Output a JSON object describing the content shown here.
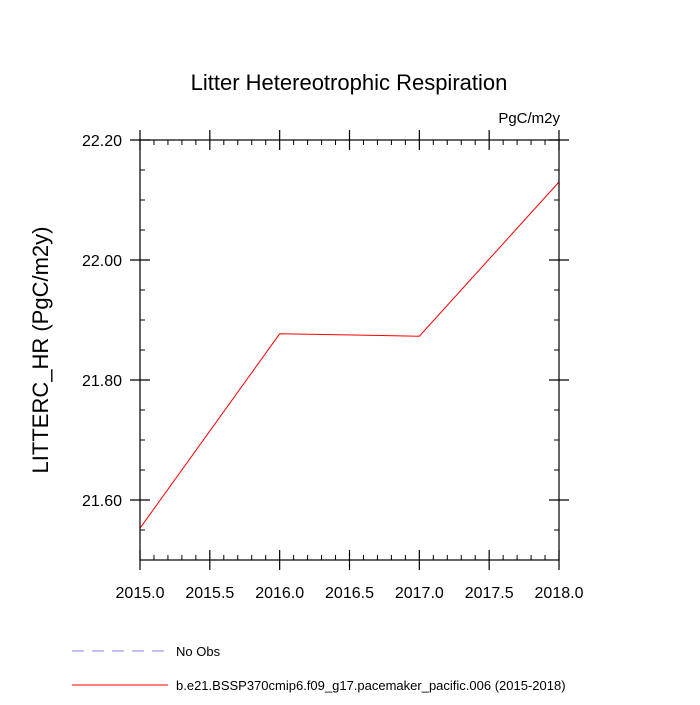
{
  "chart_data": {
    "type": "line",
    "title": "Litter Hetereotrophic Respiration",
    "units_label": "PgC/m2y",
    "xlabel": "",
    "ylabel": "LITTERC_HR  (PgC/m2y)",
    "xlim": [
      2015.0,
      2018.0
    ],
    "ylim": [
      21.5,
      22.2
    ],
    "x_ticks": [
      2015.0,
      2015.5,
      2016.0,
      2016.5,
      2017.0,
      2017.5,
      2018.0
    ],
    "x_tick_labels": [
      "2015.0",
      "2015.5",
      "2016.0",
      "2016.5",
      "2017.0",
      "2017.5",
      "2018.0"
    ],
    "y_ticks": [
      21.6,
      21.8,
      22.0,
      22.2
    ],
    "y_tick_labels": [
      "21.60",
      "21.80",
      "22.00",
      "22.20"
    ],
    "y_minor_step": 0.05,
    "x_minor_step": 0.1,
    "grid": false,
    "legend_position": "bottom",
    "legend": [
      {
        "label": "No Obs",
        "color": "#8080ff",
        "style": "dashed"
      },
      {
        "label": "b.e21.BSSP370cmip6.f09_g17.pacemaker_pacific.006 (2015-2018)",
        "color": "#ff0000",
        "style": "solid"
      }
    ],
    "series": [
      {
        "name": "b.e21.BSSP370cmip6.f09_g17.pacemaker_pacific.006 (2015-2018)",
        "color": "#ff0000",
        "x": [
          2015.0,
          2016.0,
          2017.0,
          2018.0
        ],
        "values": [
          21.553,
          21.877,
          21.873,
          22.13
        ]
      }
    ]
  }
}
